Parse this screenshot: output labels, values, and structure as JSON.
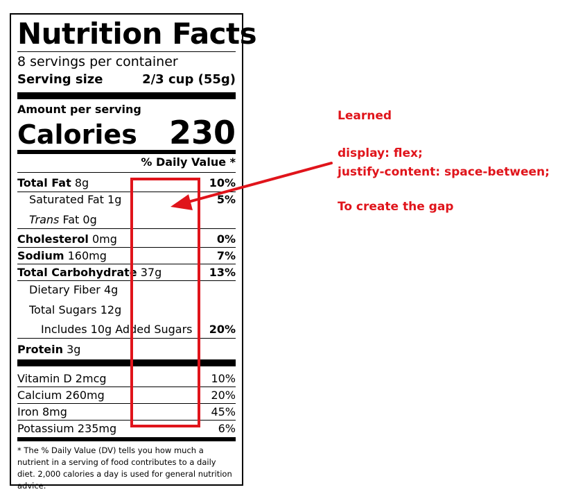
{
  "label": {
    "title": "Nutrition Facts",
    "servings_per_container": "8 servings per container",
    "serving_size_label": "Serving size",
    "serving_size_value": "2/3 cup (55g)",
    "amount_per_serving": "Amount per serving",
    "calories_label": "Calories",
    "calories_value": "230",
    "daily_value_header": "% Daily Value *",
    "nutrients": [
      {
        "name": "Total Fat",
        "amount": "8g",
        "dv": "10%"
      },
      {
        "name": "Saturated Fat",
        "amount": "1g",
        "dv": "5%"
      },
      {
        "prefix": "Trans",
        "name": "Fat",
        "amount": "0g",
        "dv": ""
      },
      {
        "name": "Cholesterol",
        "amount": "0mg",
        "dv": "0%"
      },
      {
        "name": "Sodium",
        "amount": "160mg",
        "dv": "7%"
      },
      {
        "name": "Total Carbohydrate",
        "amount": "37g",
        "dv": "13%"
      },
      {
        "name": "Dietary Fiber",
        "amount": "4g",
        "dv": ""
      },
      {
        "name": "Total Sugars",
        "amount": "12g",
        "dv": ""
      },
      {
        "name": "Includes 10g Added Sugars",
        "amount": "",
        "dv": "20%"
      },
      {
        "name": "Protein",
        "amount": "3g",
        "dv": ""
      }
    ],
    "vitamins": [
      {
        "name": "Vitamin D",
        "amount": "2mcg",
        "dv": "10%"
      },
      {
        "name": "Calcium",
        "amount": "260mg",
        "dv": "20%"
      },
      {
        "name": "Iron",
        "amount": "8mg",
        "dv": "45%"
      },
      {
        "name": "Potassium",
        "amount": "235mg",
        "dv": "6%"
      }
    ],
    "footnote": "* The % Daily Value (DV) tells you how much a nutrient in a serving of food contributes to a daily diet. 2,000 calories a day is used for general nutrition advice."
  },
  "annotation": {
    "heading": "Learned",
    "code_line_1": "display: flex;",
    "code_line_2": "justify-content: space-between;",
    "caption": "To create the gap",
    "color": "#e0141b"
  }
}
